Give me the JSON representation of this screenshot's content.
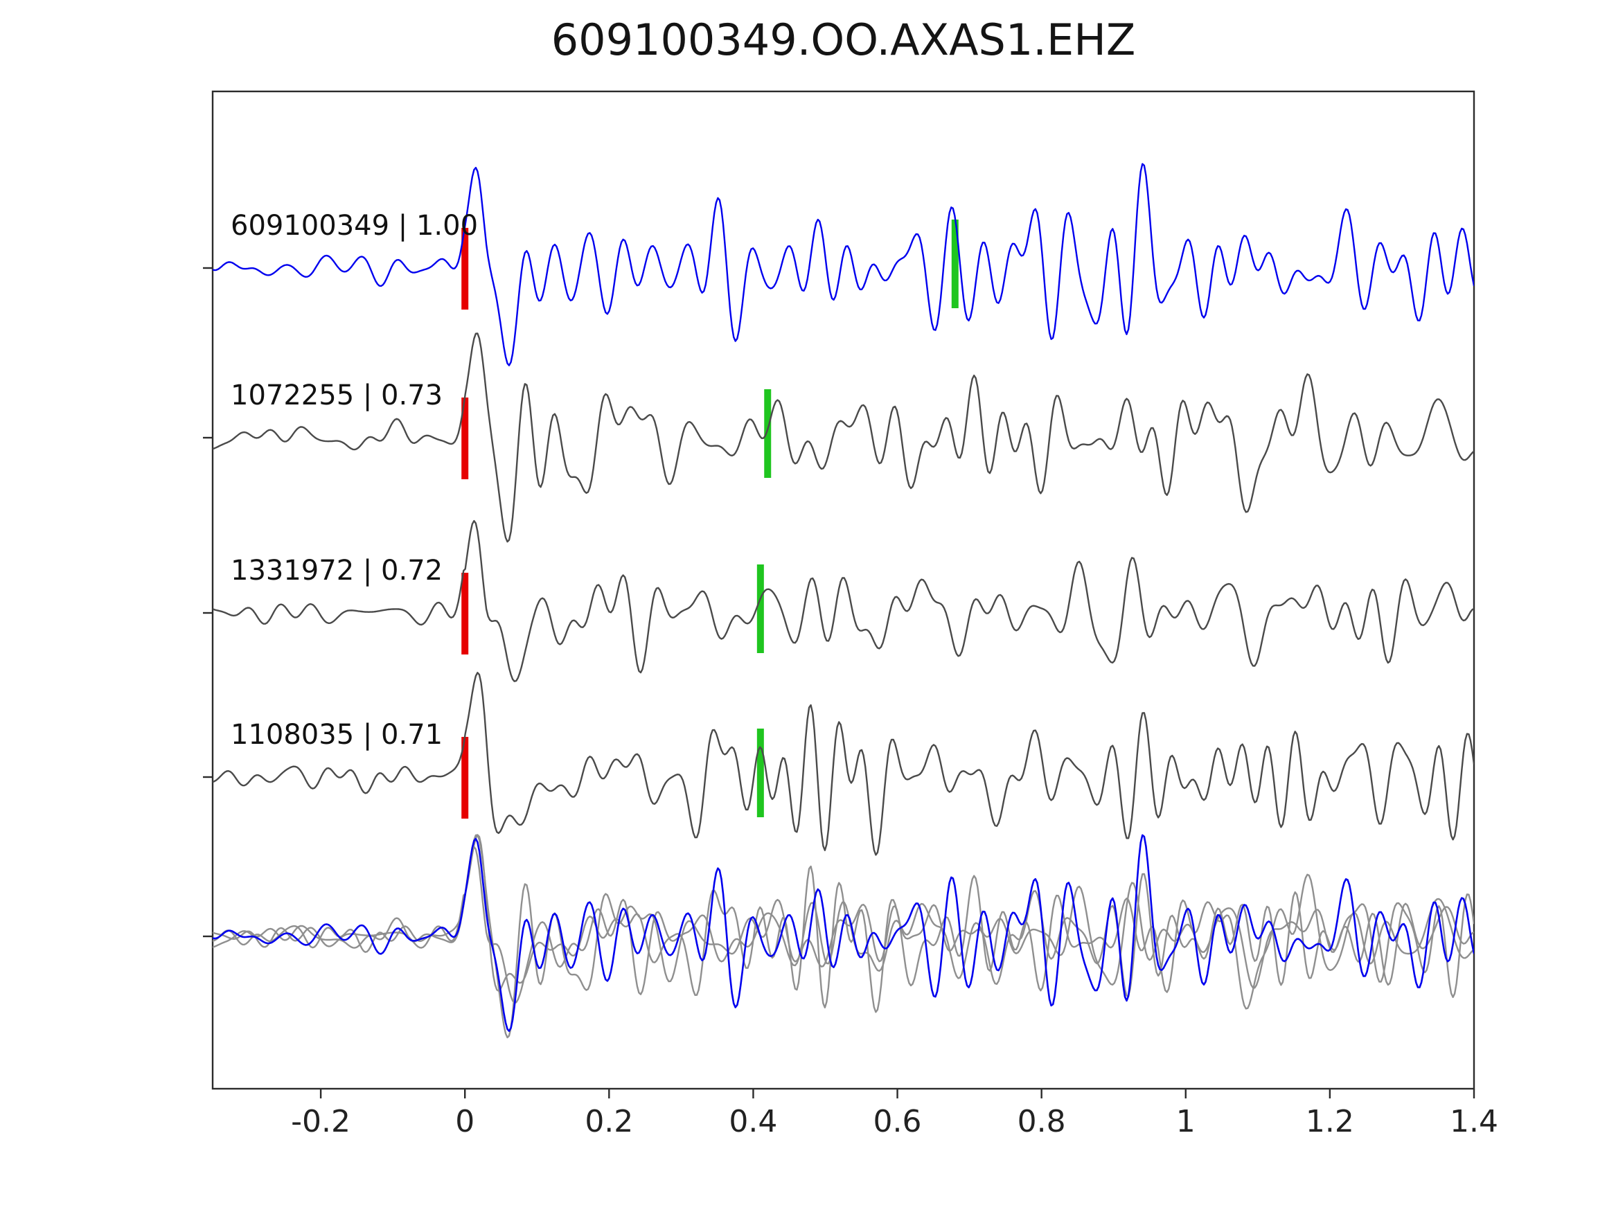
{
  "title": "609100349.OO.AXAS1.EHZ",
  "chart_data": {
    "type": "line",
    "title": "609100349.OO.AXAS1.EHZ",
    "xlabel": "",
    "ylabel": "",
    "grid": false,
    "legend": "none",
    "x_range": [
      -0.35,
      1.4
    ],
    "x_ticks": [
      -0.2,
      0,
      0.2,
      0.4,
      0.6,
      0.8,
      1,
      1.2,
      1.4
    ],
    "x_tick_labels": [
      "-0.2",
      "0",
      "0.2",
      "0.4",
      "0.6",
      "0.8",
      "1",
      "1.2",
      "1.4"
    ],
    "traces": [
      {
        "id": "609100349",
        "correlation": "1.00",
        "label": "609100349 | 1.00",
        "color": "#0000ee",
        "red_pick_x": 0,
        "green_pick_x": 0.68,
        "row": 1
      },
      {
        "id": "1072255",
        "correlation": "0.73",
        "label": "1072255 | 0.73",
        "color": "#4a4a4a",
        "red_pick_x": 0,
        "green_pick_x": 0.42,
        "row": 2
      },
      {
        "id": "1331972",
        "correlation": "0.72",
        "label": "1331972 | 0.72",
        "color": "#4a4a4a",
        "red_pick_x": 0,
        "green_pick_x": 0.41,
        "row": 3
      },
      {
        "id": "1108035",
        "correlation": "0.71",
        "label": "1108035 | 0.71",
        "color": "#4a4a4a",
        "red_pick_x": 0,
        "green_pick_x": 0.41,
        "row": 4
      }
    ],
    "overlay": {
      "description": "all four traces superimposed and aligned at 0",
      "gray_color": "#8f8f8f",
      "highlight_color": "#0000ee"
    },
    "markers": {
      "red_color": "#e60000",
      "green_color": "#1fc51f",
      "red_meaning": "alignment pick at 0",
      "green_meaning": "secondary pick"
    },
    "axis_color": "#2b2b2b",
    "synthesis": {
      "n_points": 720,
      "seeds": [
        7,
        23,
        57,
        91
      ]
    }
  }
}
